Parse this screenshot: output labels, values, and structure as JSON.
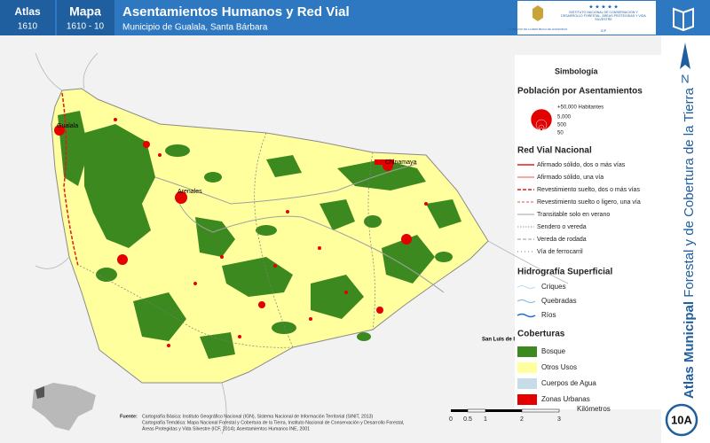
{
  "header": {
    "atlas_label": "Atlas",
    "atlas_code": "1610",
    "map_label": "Mapa",
    "map_code": "1610 - 10",
    "title": "Asentamientos Humanos y Red Vial",
    "subtitle": "Municipio de Gualala, Santa Bárbara",
    "logo_left": "GOBIERNO DE LA REPÚBLICA DE HONDURAS",
    "logo_right": "INSTITUTO NACIONAL DE CONSERVACIÓN Y DESARROLLO FORESTAL, ÁREAS PROTEGIDAS Y VIDA SILVESTRE",
    "logo_acronym": "ICF"
  },
  "sidebar": {
    "north": "N",
    "title_bold": "Atlas Municipal",
    "title_rest": "Forestal y de Cobertura de la Tierra",
    "page_code": "10A"
  },
  "map_labels": [
    "Gualala",
    "Arenales",
    "Chinamaya",
    "San Luis de I"
  ],
  "legend": {
    "title": "Simbología",
    "population": {
      "title": "Población por Asentamientos",
      "sizes": [
        "+50,000 Habitantes",
        "5,000",
        "500",
        "50"
      ]
    },
    "roads": {
      "title": "Red Vial Nacional",
      "items": [
        "Afirmado sólido, dos o más vías",
        "Afirmado sólido, una vía",
        "Revestimiento suelto, dos o más vías",
        "Revestimiento suelto o ligero, una vía",
        "Transitable solo en verano",
        "Sendero o vereda",
        "Vereda de rodada",
        "Vía de ferrocarril"
      ]
    },
    "hydro": {
      "title": "Hidrografía Superficial",
      "items": [
        "Criques",
        "Quebradas",
        "Ríos"
      ]
    },
    "cover": {
      "title": "Coberturas",
      "items": [
        "Bosque",
        "Otros Usos",
        "Cuerpos de Agua",
        "Zonas Urbanas"
      ]
    }
  },
  "source": {
    "label": "Fuente:",
    "lines": [
      "Cartografía Básica: Instituto Geográfico Nacional (IGN), Sistema Nacional de Información Territorial (SINIT, 2013)",
      "Cartografía Temática: Mapa Nacional Forestal y Cobertura de la Tierra, Instituto Nacional de Conservación y Desarrollo Forestal,",
      "Áreas Protegidas y Vida Silvestre (ICF, 2014); Asentamientos Humanos INE, 2001"
    ]
  },
  "scale": {
    "labels": [
      "0",
      "0.5",
      "1",
      "2",
      "3"
    ],
    "unit": "Kilómetros"
  }
}
